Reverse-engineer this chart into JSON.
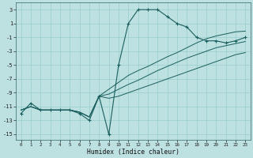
{
  "xlabel": "Humidex (Indice chaleur)",
  "bg_color": "#bde0e0",
  "grid_color": "#99cccc",
  "line_color": "#1a5f5f",
  "xlim": [
    -0.5,
    23.5
  ],
  "ylim": [
    -15.8,
    4.0
  ],
  "yticks": [
    3,
    1,
    -1,
    -3,
    -5,
    -7,
    -9,
    -11,
    -13,
    -15
  ],
  "xticks": [
    0,
    1,
    2,
    3,
    4,
    5,
    6,
    7,
    8,
    9,
    10,
    11,
    12,
    13,
    14,
    15,
    16,
    17,
    18,
    19,
    20,
    21,
    22,
    23
  ],
  "main_x": [
    0,
    1,
    2,
    3,
    4,
    5,
    6,
    7,
    8,
    9,
    10,
    11,
    12,
    13,
    14,
    15,
    16,
    17,
    18,
    19,
    20,
    21,
    22,
    23
  ],
  "main_y": [
    -12.0,
    -10.5,
    -11.5,
    -11.5,
    -11.5,
    -11.5,
    -12.0,
    -13.0,
    -9.5,
    -15.0,
    -5.0,
    1.0,
    3.0,
    3.0,
    3.0,
    2.0,
    1.0,
    0.5,
    -1.0,
    -1.5,
    -1.5,
    -1.8,
    -1.5,
    -1.0
  ],
  "reg1_x": [
    0,
    1,
    2,
    3,
    4,
    5,
    6,
    7,
    8,
    9,
    10,
    11,
    12,
    13,
    14,
    15,
    16,
    17,
    18,
    19,
    20,
    21,
    22,
    23
  ],
  "reg1_y": [
    -11.5,
    -11.0,
    -11.5,
    -11.5,
    -11.5,
    -11.5,
    -11.8,
    -12.5,
    -9.5,
    -8.5,
    -7.5,
    -6.5,
    -5.8,
    -5.2,
    -4.5,
    -3.8,
    -3.2,
    -2.5,
    -1.8,
    -1.2,
    -0.8,
    -0.5,
    -0.2,
    -0.1
  ],
  "reg2_x": [
    0,
    1,
    2,
    3,
    4,
    5,
    6,
    7,
    8,
    9,
    10,
    11,
    12,
    13,
    14,
    15,
    16,
    17,
    18,
    19,
    20,
    21,
    22,
    23
  ],
  "reg2_y": [
    -11.5,
    -11.0,
    -11.5,
    -11.5,
    -11.5,
    -11.5,
    -11.8,
    -12.5,
    -9.5,
    -9.2,
    -8.5,
    -7.8,
    -7.2,
    -6.5,
    -5.8,
    -5.2,
    -4.6,
    -4.0,
    -3.5,
    -3.0,
    -2.5,
    -2.2,
    -1.9,
    -1.6
  ],
  "reg3_x": [
    0,
    1,
    2,
    3,
    4,
    5,
    6,
    7,
    8,
    9,
    10,
    11,
    12,
    13,
    14,
    15,
    16,
    17,
    18,
    19,
    20,
    21,
    22,
    23
  ],
  "reg3_y": [
    -11.5,
    -11.0,
    -11.5,
    -11.5,
    -11.5,
    -11.5,
    -11.8,
    -12.5,
    -9.5,
    -9.8,
    -9.5,
    -9.0,
    -8.5,
    -8.0,
    -7.5,
    -7.0,
    -6.5,
    -6.0,
    -5.5,
    -5.0,
    -4.5,
    -4.0,
    -3.5,
    -3.2
  ]
}
